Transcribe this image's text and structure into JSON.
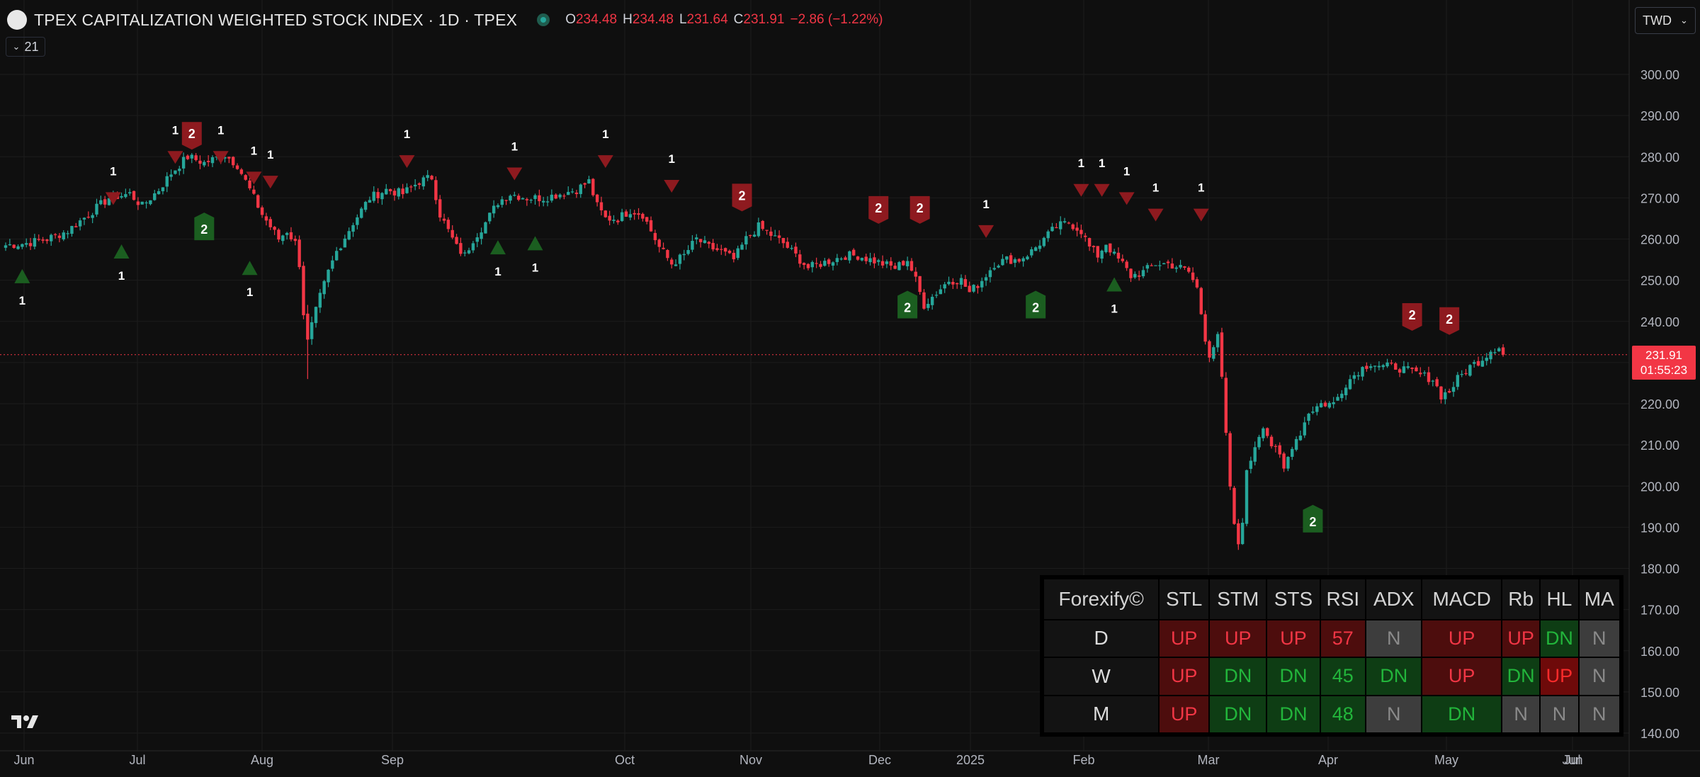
{
  "header": {
    "title": "TPEX CAPITALIZATION WEIGHTED STOCK INDEX · 1D · TPEX",
    "ohlc": [
      {
        "k": "O",
        "v": "234.48"
      },
      {
        "k": "H",
        "v": "234.48"
      },
      {
        "k": "L",
        "v": "231.64"
      },
      {
        "k": "C",
        "v": "231.91"
      }
    ],
    "change": "−2.86 (−1.22%)",
    "indicator_count": "21",
    "currency": "TWD"
  },
  "price_tag": {
    "price": "231.91",
    "countdown": "01:55:23"
  },
  "colors": {
    "background": "#0f0f0f",
    "up_candle": "#26a69a",
    "down_candle": "#f23645",
    "sell_signal": "#8e1a1f",
    "buy_signal": "#1b5e20",
    "grid": "#1c1c1c"
  },
  "chart_data": {
    "type": "candlestick",
    "title": "TPEX CAPITALIZATION WEIGHTED STOCK INDEX",
    "interval": "1D",
    "ylim": [
      135,
      310
    ],
    "y_ticks": [
      "300.00",
      "290.00",
      "280.00",
      "270.00",
      "260.00",
      "250.00",
      "240.00",
      "230.00",
      "220.00",
      "210.00",
      "200.00",
      "190.00",
      "180.00",
      "170.00",
      "160.00",
      "150.00",
      "140.00"
    ],
    "x_ticks": [
      "Jun",
      "Jul",
      "Aug",
      "Sep",
      "Oct",
      "Nov",
      "Dec",
      "2025",
      "Feb",
      "Mar",
      "Apr",
      "May",
      "Jun",
      "Jul"
    ],
    "last_close": 231.91,
    "close_path": [
      [
        0,
        258.5
      ],
      [
        5,
        259
      ],
      [
        10,
        260
      ],
      [
        15,
        262
      ],
      [
        20,
        266
      ],
      [
        25,
        270
      ],
      [
        30,
        271
      ],
      [
        33,
        268
      ],
      [
        37,
        272
      ],
      [
        40,
        276
      ],
      [
        44,
        280
      ],
      [
        48,
        278.5
      ],
      [
        53,
        280.5
      ],
      [
        56,
        278
      ],
      [
        59,
        272
      ],
      [
        62,
        266
      ],
      [
        64,
        263
      ],
      [
        66,
        260
      ],
      [
        68,
        262
      ],
      [
        70,
        259
      ],
      [
        71,
        254
      ],
      [
        72,
        242
      ],
      [
        73,
        235
      ],
      [
        74,
        239
      ],
      [
        76,
        246
      ],
      [
        78,
        252
      ],
      [
        80,
        257
      ],
      [
        84,
        264
      ],
      [
        88,
        270
      ],
      [
        92,
        272
      ],
      [
        96,
        271
      ],
      [
        100,
        274
      ],
      [
        103,
        275
      ],
      [
        105,
        266
      ],
      [
        107,
        262
      ],
      [
        109,
        258
      ],
      [
        111,
        256
      ],
      [
        113,
        260
      ],
      [
        116,
        264
      ],
      [
        119,
        269
      ],
      [
        122,
        271
      ],
      [
        126,
        270
      ],
      [
        130,
        270
      ],
      [
        134,
        271
      ],
      [
        138,
        272
      ],
      [
        141,
        274
      ],
      [
        143,
        268
      ],
      [
        145,
        265
      ],
      [
        148,
        265
      ],
      [
        151,
        267
      ],
      [
        154,
        266
      ],
      [
        156,
        262
      ],
      [
        158,
        258
      ],
      [
        161,
        254
      ],
      [
        164,
        256
      ],
      [
        167,
        260
      ],
      [
        170,
        258
      ],
      [
        173,
        257
      ],
      [
        176,
        255
      ],
      [
        179,
        260
      ],
      [
        182,
        263
      ],
      [
        185,
        261
      ],
      [
        188,
        259
      ],
      [
        191,
        256
      ],
      [
        194,
        253
      ],
      [
        197,
        254
      ],
      [
        200,
        255
      ],
      [
        203,
        256
      ],
      [
        206,
        256
      ],
      [
        209,
        255
      ],
      [
        212,
        254
      ],
      [
        215,
        253
      ],
      [
        218,
        255
      ],
      [
        220,
        250
      ],
      [
        222,
        244
      ],
      [
        225,
        247
      ],
      [
        228,
        250
      ],
      [
        231,
        250
      ],
      [
        233,
        247
      ],
      [
        236,
        250
      ],
      [
        239,
        254
      ],
      [
        242,
        255
      ],
      [
        245,
        255
      ],
      [
        248,
        257
      ],
      [
        251,
        260
      ],
      [
        254,
        263
      ],
      [
        257,
        264
      ],
      [
        260,
        262
      ],
      [
        262,
        258
      ],
      [
        264,
        256
      ],
      [
        266,
        259
      ],
      [
        268,
        256
      ],
      [
        270,
        254
      ],
      [
        272,
        251
      ],
      [
        275,
        252
      ],
      [
        278,
        254
      ],
      [
        281,
        254
      ],
      [
        284,
        253
      ],
      [
        286,
        252
      ],
      [
        288,
        248
      ],
      [
        289,
        242
      ],
      [
        290,
        236
      ],
      [
        291,
        232
      ],
      [
        293,
        236
      ],
      [
        294,
        226
      ],
      [
        295,
        212
      ],
      [
        296,
        200
      ],
      [
        297,
        190
      ],
      [
        298,
        186
      ],
      [
        299,
        192
      ],
      [
        300,
        203
      ],
      [
        302,
        210
      ],
      [
        304,
        215
      ],
      [
        306,
        210
      ],
      [
        308,
        207
      ],
      [
        309,
        204
      ],
      [
        311,
        210
      ],
      [
        313,
        213
      ],
      [
        315,
        218
      ],
      [
        318,
        220
      ],
      [
        321,
        220
      ],
      [
        324,
        225
      ],
      [
        327,
        228
      ],
      [
        330,
        230
      ],
      [
        333,
        229
      ],
      [
        336,
        229
      ],
      [
        339,
        228
      ],
      [
        342,
        227
      ],
      [
        345,
        226
      ],
      [
        347,
        222
      ],
      [
        349,
        223
      ],
      [
        351,
        226
      ],
      [
        354,
        229
      ],
      [
        357,
        231
      ],
      [
        359,
        233
      ],
      [
        361,
        234
      ],
      [
        362,
        231.9
      ]
    ],
    "signals": [
      {
        "kind": "buy",
        "size": 1,
        "idx": 4,
        "price": 251
      },
      {
        "kind": "sell",
        "size": 1,
        "idx": 26,
        "price": 270
      },
      {
        "kind": "buy",
        "size": 1,
        "idx": 28,
        "price": 257
      },
      {
        "kind": "sell",
        "size": 1,
        "idx": 41,
        "price": 280
      },
      {
        "kind": "sell",
        "size": 2,
        "idx": 45,
        "price": 285
      },
      {
        "kind": "sell",
        "size": 1,
        "idx": 52,
        "price": 280
      },
      {
        "kind": "buy",
        "size": 2,
        "idx": 48,
        "price": 263
      },
      {
        "kind": "sell",
        "size": 1,
        "idx": 60,
        "price": 275
      },
      {
        "kind": "sell",
        "size": 1,
        "idx": 64,
        "price": 274
      },
      {
        "kind": "buy",
        "size": 1,
        "idx": 59,
        "price": 253
      },
      {
        "kind": "sell",
        "size": 1,
        "idx": 97,
        "price": 279
      },
      {
        "kind": "buy",
        "size": 1,
        "idx": 119,
        "price": 258
      },
      {
        "kind": "sell",
        "size": 1,
        "idx": 123,
        "price": 276
      },
      {
        "kind": "buy",
        "size": 1,
        "idx": 128,
        "price": 259
      },
      {
        "kind": "sell",
        "size": 1,
        "idx": 145,
        "price": 279
      },
      {
        "kind": "sell",
        "size": 1,
        "idx": 161,
        "price": 273
      },
      {
        "kind": "sell",
        "size": 2,
        "idx": 178,
        "price": 270
      },
      {
        "kind": "sell",
        "size": 2,
        "idx": 211,
        "price": 267
      },
      {
        "kind": "sell",
        "size": 2,
        "idx": 221,
        "price": 267
      },
      {
        "kind": "buy",
        "size": 2,
        "idx": 218,
        "price": 244
      },
      {
        "kind": "sell",
        "size": 1,
        "idx": 237,
        "price": 262
      },
      {
        "kind": "buy",
        "size": 2,
        "idx": 249,
        "price": 244
      },
      {
        "kind": "sell",
        "size": 1,
        "idx": 260,
        "price": 272
      },
      {
        "kind": "sell",
        "size": 1,
        "idx": 265,
        "price": 272
      },
      {
        "kind": "sell",
        "size": 1,
        "idx": 271,
        "price": 270
      },
      {
        "kind": "buy",
        "size": 1,
        "idx": 268,
        "price": 249
      },
      {
        "kind": "sell",
        "size": 1,
        "idx": 278,
        "price": 266
      },
      {
        "kind": "sell",
        "size": 1,
        "idx": 289,
        "price": 266
      },
      {
        "kind": "buy",
        "size": 2,
        "idx": 316,
        "price": 192
      },
      {
        "kind": "sell",
        "size": 2,
        "idx": 340,
        "price": 241
      },
      {
        "kind": "sell",
        "size": 2,
        "idx": 349,
        "price": 240
      }
    ]
  },
  "dashboard": {
    "brand": "Forexify©",
    "columns": [
      "STL",
      "STM",
      "STS",
      "RSI",
      "ADX",
      "MACD",
      "Rb",
      "HL",
      "MA"
    ],
    "rows": [
      {
        "tf": "D",
        "cells": [
          {
            "t": "UP",
            "s": "up"
          },
          {
            "t": "UP",
            "s": "up"
          },
          {
            "t": "UP",
            "s": "up"
          },
          {
            "t": "57",
            "s": "up"
          },
          {
            "t": "N",
            "s": "n"
          },
          {
            "t": "UP",
            "s": "up"
          },
          {
            "t": "UP",
            "s": "up"
          },
          {
            "t": "DN",
            "s": "dn"
          },
          {
            "t": "N",
            "s": "n"
          }
        ]
      },
      {
        "tf": "W",
        "cells": [
          {
            "t": "UP",
            "s": "up"
          },
          {
            "t": "DN",
            "s": "dn"
          },
          {
            "t": "DN",
            "s": "dn"
          },
          {
            "t": "45",
            "s": "dn"
          },
          {
            "t": "DN",
            "s": "dn"
          },
          {
            "t": "UP",
            "s": "up"
          },
          {
            "t": "DN",
            "s": "dn"
          },
          {
            "t": "UP",
            "s": "hlup"
          },
          {
            "t": "N",
            "s": "n"
          }
        ]
      },
      {
        "tf": "M",
        "cells": [
          {
            "t": "UP",
            "s": "up"
          },
          {
            "t": "DN",
            "s": "dn"
          },
          {
            "t": "DN",
            "s": "dn"
          },
          {
            "t": "48",
            "s": "dn"
          },
          {
            "t": "N",
            "s": "n"
          },
          {
            "t": "DN",
            "s": "dn"
          },
          {
            "t": "N",
            "s": "n"
          },
          {
            "t": "N",
            "s": "n"
          },
          {
            "t": "N",
            "s": "n"
          }
        ]
      }
    ]
  }
}
